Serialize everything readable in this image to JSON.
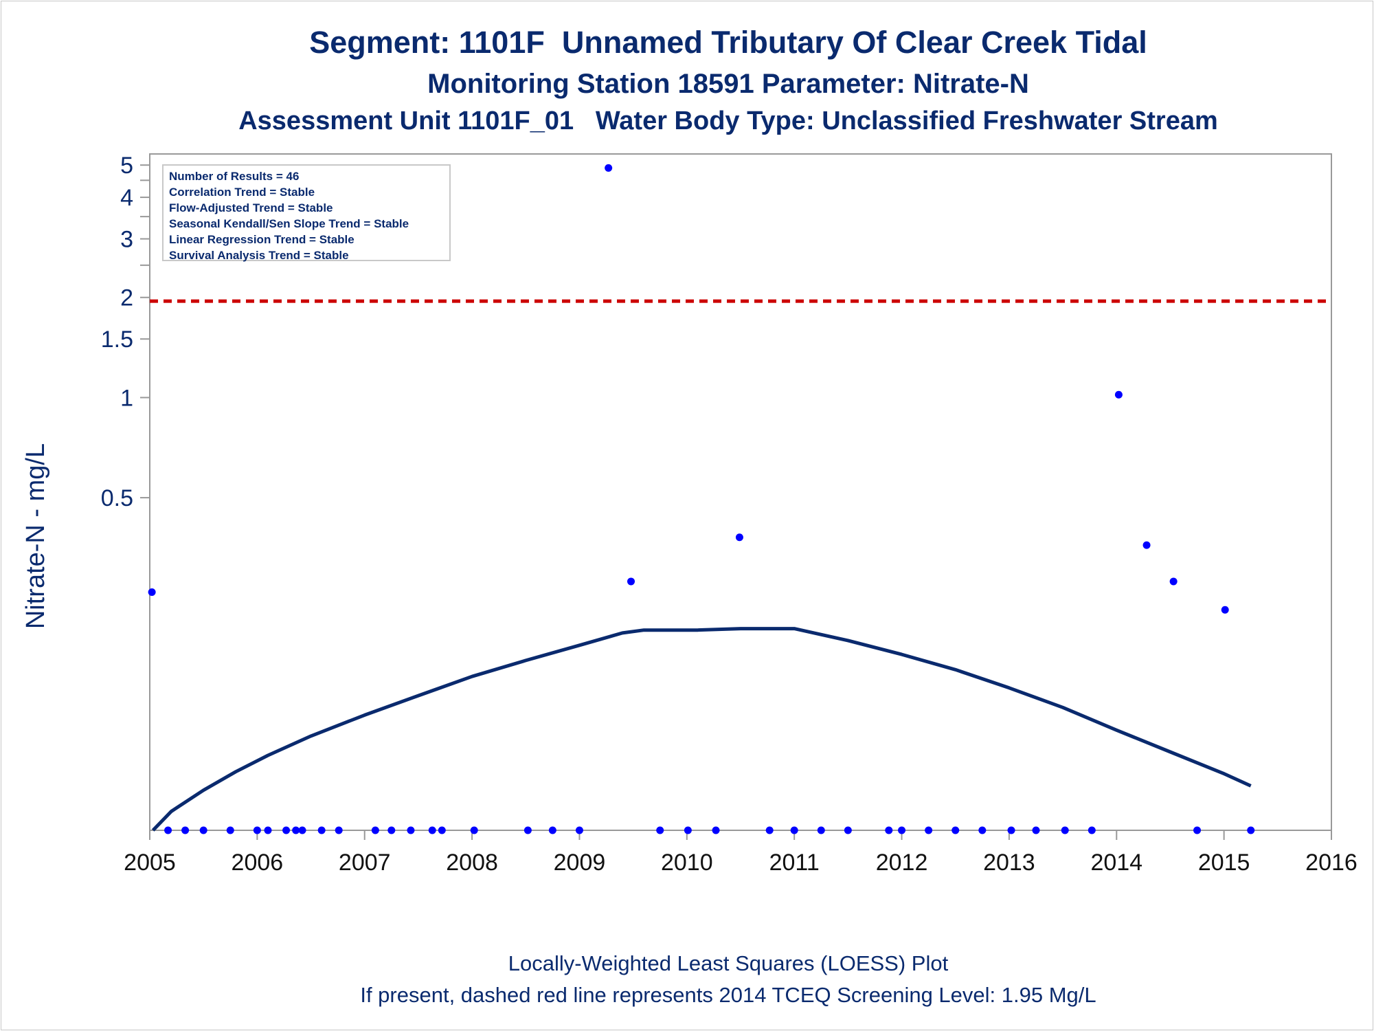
{
  "titles": {
    "line1": "Segment: 1101F  Unnamed Tributary Of Clear Creek Tidal",
    "line2": "Monitoring Station 18591 Parameter: Nitrate-N",
    "line3": "Assessment Unit 1101F_01   Water Body Type: Unclassified Freshwater Stream"
  },
  "footnotes": {
    "line1": "Locally-Weighted Least Squares (LOESS) Plot",
    "line2": "If present, dashed red line represents 2014 TCEQ Screening Level: 1.95 Mg/L"
  },
  "stats_box": {
    "results": "Number of Results = 46",
    "correlation": "Correlation Trend = Stable",
    "flow_adjusted": "Flow-Adjusted Trend = Stable",
    "seasonal_kendall": "Seasonal Kendall/Sen Slope Trend = Stable",
    "linear_regression": "Linear Regression Trend = Stable",
    "survival": "Survival Analysis Trend = Stable"
  },
  "colors": {
    "text": "#0a2a6e",
    "points": "#0000ff",
    "loess": "#0a2a6e",
    "screening_line": "#cc0000",
    "axis": "#999999"
  },
  "chart_data": {
    "type": "scatter",
    "ylabel": "Nitrate-N - mg/L",
    "xlabel": "",
    "y_scale": "log",
    "xlim": [
      2005,
      2016
    ],
    "ylim": [
      0.05,
      5.4
    ],
    "x_ticks": [
      2005,
      2006,
      2007,
      2008,
      2009,
      2010,
      2011,
      2012,
      2013,
      2014,
      2015,
      2016
    ],
    "y_ticks": [
      {
        "value": 0.5,
        "label": "0.5"
      },
      {
        "value": 1,
        "label": "1"
      },
      {
        "value": 1.5,
        "label": "1.5"
      },
      {
        "value": 2,
        "label": "2"
      },
      {
        "value": 3,
        "label": "3"
      },
      {
        "value": 4,
        "label": "4"
      },
      {
        "value": 5,
        "label": "5"
      }
    ],
    "y_minor_ticks": [
      2.5,
      3.5,
      4.5
    ],
    "screening_level": 1.95,
    "grid": false,
    "points": [
      {
        "x": 2005.02,
        "y": 0.26
      },
      {
        "x": 2005.17,
        "y": 0.05
      },
      {
        "x": 2005.33,
        "y": 0.05
      },
      {
        "x": 2005.5,
        "y": 0.05
      },
      {
        "x": 2005.75,
        "y": 0.05
      },
      {
        "x": 2006.0,
        "y": 0.05
      },
      {
        "x": 2006.1,
        "y": 0.05
      },
      {
        "x": 2006.27,
        "y": 0.05
      },
      {
        "x": 2006.36,
        "y": 0.05
      },
      {
        "x": 2006.42,
        "y": 0.05
      },
      {
        "x": 2006.6,
        "y": 0.05
      },
      {
        "x": 2006.76,
        "y": 0.05
      },
      {
        "x": 2007.1,
        "y": 0.05
      },
      {
        "x": 2007.25,
        "y": 0.05
      },
      {
        "x": 2007.43,
        "y": 0.05
      },
      {
        "x": 2007.63,
        "y": 0.05
      },
      {
        "x": 2007.72,
        "y": 0.05
      },
      {
        "x": 2008.02,
        "y": 0.05
      },
      {
        "x": 2008.52,
        "y": 0.05
      },
      {
        "x": 2008.75,
        "y": 0.05
      },
      {
        "x": 2009.0,
        "y": 0.05
      },
      {
        "x": 2009.27,
        "y": 4.9
      },
      {
        "x": 2009.48,
        "y": 0.28
      },
      {
        "x": 2009.75,
        "y": 0.05
      },
      {
        "x": 2010.01,
        "y": 0.05
      },
      {
        "x": 2010.27,
        "y": 0.05
      },
      {
        "x": 2010.49,
        "y": 0.38
      },
      {
        "x": 2010.77,
        "y": 0.05
      },
      {
        "x": 2011.0,
        "y": 0.05
      },
      {
        "x": 2011.25,
        "y": 0.05
      },
      {
        "x": 2011.5,
        "y": 0.05
      },
      {
        "x": 2011.88,
        "y": 0.05
      },
      {
        "x": 2012.0,
        "y": 0.05
      },
      {
        "x": 2012.25,
        "y": 0.05
      },
      {
        "x": 2012.5,
        "y": 0.05
      },
      {
        "x": 2012.75,
        "y": 0.05
      },
      {
        "x": 2013.02,
        "y": 0.05
      },
      {
        "x": 2013.25,
        "y": 0.05
      },
      {
        "x": 2013.52,
        "y": 0.05
      },
      {
        "x": 2013.77,
        "y": 0.05
      },
      {
        "x": 2014.02,
        "y": 1.02
      },
      {
        "x": 2014.28,
        "y": 0.36
      },
      {
        "x": 2014.53,
        "y": 0.28
      },
      {
        "x": 2014.75,
        "y": 0.05
      },
      {
        "x": 2015.01,
        "y": 0.23
      },
      {
        "x": 2015.25,
        "y": 0.05
      }
    ],
    "loess": {
      "x": [
        2005.03,
        2005.2,
        2005.5,
        2005.8,
        2006.1,
        2006.5,
        2007.0,
        2007.5,
        2008.0,
        2008.5,
        2009.0,
        2009.4,
        2009.6,
        2010.1,
        2010.5,
        2011.0,
        2011.5,
        2012.0,
        2012.5,
        2013.0,
        2013.5,
        2014.0,
        2014.5,
        2015.0,
        2015.25
      ],
      "y": [
        0.05,
        0.057,
        0.066,
        0.075,
        0.084,
        0.096,
        0.111,
        0.127,
        0.145,
        0.162,
        0.18,
        0.196,
        0.2,
        0.2,
        0.202,
        0.202,
        0.186,
        0.169,
        0.152,
        0.134,
        0.117,
        0.1,
        0.086,
        0.074,
        0.068
      ]
    }
  }
}
